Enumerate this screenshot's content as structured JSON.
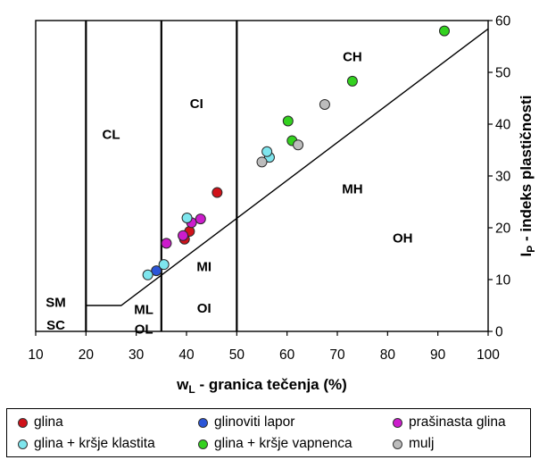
{
  "chart_data": {
    "type": "scatter",
    "xlabel_prefix": "w",
    "xlabel_sub": "L",
    "xlabel_suffix": " - granica tečenja (%)",
    "ylabel_prefix": "I",
    "ylabel_sub": "P",
    "ylabel_suffix": " - indeks plastičnosti",
    "xlim": [
      10,
      100
    ],
    "ylim": [
      0,
      60
    ],
    "xticks": [
      10,
      20,
      30,
      40,
      50,
      60,
      70,
      80,
      90,
      100
    ],
    "yticks": [
      0,
      10,
      20,
      30,
      40,
      50,
      60
    ],
    "y_axis_side": "right",
    "grid": false,
    "vertical_lines_x": [
      20,
      35,
      50
    ],
    "a_line": {
      "points": [
        [
          20,
          5
        ],
        [
          27,
          5
        ],
        [
          100,
          58.4
        ]
      ]
    },
    "zone_labels": [
      {
        "text": "CL",
        "x": 25,
        "y": 38
      },
      {
        "text": "CI",
        "x": 42,
        "y": 44
      },
      {
        "text": "CH",
        "x": 73,
        "y": 53
      },
      {
        "text": "MH",
        "x": 73,
        "y": 27.5
      },
      {
        "text": "OH",
        "x": 83,
        "y": 18
      },
      {
        "text": "MI",
        "x": 43.5,
        "y": 12.5
      },
      {
        "text": "OI",
        "x": 43.5,
        "y": 4.5
      },
      {
        "text": "ML",
        "x": 31.5,
        "y": 4.2
      },
      {
        "text": "OL",
        "x": 31.5,
        "y": 0.4
      },
      {
        "text": "SM",
        "x": 14,
        "y": 5.6
      },
      {
        "text": "SC",
        "x": 14,
        "y": 1.2
      }
    ],
    "series": [
      {
        "name": "glina",
        "color": "#d0121a",
        "points": [
          [
            39.6,
            17.8
          ],
          [
            40.6,
            19.3
          ],
          [
            46.1,
            26.8
          ]
        ]
      },
      {
        "name": "glinoviti lapor",
        "color": "#2b55d8",
        "points": [
          [
            34.0,
            11.7
          ]
        ]
      },
      {
        "name": "prašinasta glina",
        "color": "#cc1ccc",
        "points": [
          [
            36.0,
            17.0
          ],
          [
            39.3,
            18.5
          ],
          [
            41.0,
            21.0
          ],
          [
            42.8,
            21.7
          ]
        ]
      },
      {
        "name": "glina + kršje klastita",
        "color": "#7ee6ee",
        "points": [
          [
            32.3,
            10.9
          ],
          [
            35.5,
            12.9
          ],
          [
            40.1,
            21.9
          ],
          [
            56.5,
            33.6
          ],
          [
            56.0,
            34.7
          ]
        ]
      },
      {
        "name": "glina + kršje vapnenca",
        "color": "#33d11f",
        "points": [
          [
            60.2,
            40.6
          ],
          [
            61.0,
            36.8
          ],
          [
            73.0,
            48.3
          ],
          [
            91.3,
            58.0
          ]
        ]
      },
      {
        "name": "mulj",
        "color": "#bcbcbc",
        "points": [
          [
            55.0,
            32.7
          ],
          [
            62.2,
            36.0
          ],
          [
            67.5,
            43.8
          ]
        ]
      }
    ]
  }
}
